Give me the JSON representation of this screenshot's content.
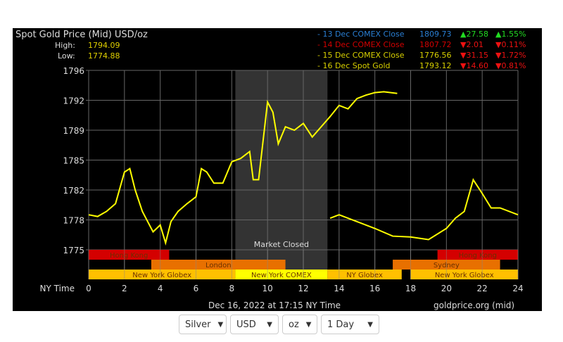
{
  "chart_data": {
    "type": "line",
    "title": "Spot Gold Price (Mid) USD/oz",
    "high_label": "High:",
    "high": "1794.09",
    "low_label": "Low:",
    "low": "1774.88",
    "xlabel": "NY Time",
    "xlim": [
      0,
      24
    ],
    "x_ticks": [
      "0",
      "2",
      "4",
      "6",
      "8",
      "10",
      "12",
      "14",
      "16",
      "18",
      "20",
      "22",
      "24"
    ],
    "ylim": [
      1775,
      1796
    ],
    "y_ticks": [
      "1796",
      "1792",
      "1789",
      "1785",
      "1782",
      "1778",
      "1775"
    ],
    "grid": true,
    "market_closed": {
      "label": "Market Closed",
      "from": 8.2,
      "to": 13.35
    },
    "sessions": [
      {
        "label": "Hong Kong",
        "from": 0,
        "to": 4.5,
        "row": 0,
        "color": "#d40000"
      },
      {
        "label": "Hong Kong",
        "from": 19.5,
        "to": 24,
        "row": 0,
        "color": "#d40000"
      },
      {
        "label": "London",
        "from": 3.5,
        "to": 11,
        "row": 1,
        "color": "#e87000"
      },
      {
        "label": "Sydney",
        "from": 17,
        "to": 23,
        "row": 1,
        "color": "#e87000"
      },
      {
        "label": "New York Globex",
        "from": 0,
        "to": 8.2,
        "row": 2,
        "color": "#ffc000"
      },
      {
        "label": "New York COMEX",
        "from": 8.2,
        "to": 13.35,
        "row": 2,
        "color": "#ffff00"
      },
      {
        "label": "NY Globex",
        "from": 13.35,
        "to": 17.5,
        "row": 2,
        "color": "#ffc000"
      },
      {
        "label": "New York Globex",
        "from": 18,
        "to": 24,
        "row": 2,
        "color": "#ffc000"
      }
    ],
    "series": [
      {
        "color": "#ffff00",
        "x": [
          0,
          0.5,
          1,
          1.5,
          2,
          2.3,
          2.6,
          3,
          3.3,
          3.6,
          4,
          4.3,
          4.6,
          5,
          5.5,
          6,
          6.3,
          6.6,
          7,
          7.5,
          8,
          8.5,
          9,
          9.2,
          9.5,
          10,
          10.3,
          10.6,
          11,
          11.5,
          12,
          12.5,
          13,
          13.5,
          14,
          14.5,
          15,
          15.5,
          16,
          16.5,
          17.25
        ],
        "y": [
          1779.1,
          1778.9,
          1779.5,
          1780.4,
          1784.1,
          1784.5,
          1782,
          1779.5,
          1778.3,
          1777.1,
          1777.9,
          1775.8,
          1778.3,
          1779.5,
          1780.4,
          1781.2,
          1784.5,
          1784.1,
          1782.8,
          1782.8,
          1785.3,
          1785.7,
          1786.5,
          1783.2,
          1783.2,
          1792.3,
          1791.1,
          1787.4,
          1789.4,
          1789,
          1789.8,
          1788.2,
          1789.4,
          1790.6,
          1791.9,
          1791.5,
          1792.7,
          1793.1,
          1793.4,
          1793.5,
          1793.3
        ]
      },
      {
        "color": "#ffff00",
        "x": [
          13.5,
          14,
          15,
          16,
          17,
          18,
          19,
          20,
          20.5,
          21,
          21.5,
          22,
          22.5,
          23,
          24
        ],
        "y": [
          1778.7,
          1779.1,
          1778.3,
          1777.5,
          1776.6,
          1776.5,
          1776.2,
          1777.5,
          1778.7,
          1779.5,
          1783.2,
          1781.6,
          1779.9,
          1779.9,
          1779.1
        ]
      }
    ],
    "legend": [
      {
        "label": "- 13 Dec COMEX Close",
        "price": "1809.73",
        "change": "27.58",
        "pct": "1.55%",
        "dir": "up",
        "color": "#2a7fd4"
      },
      {
        "label": "- 14 Dec COMEX Close",
        "price": "1807.72",
        "change": "2.01",
        "pct": "0.11%",
        "dir": "down",
        "color": "#d40000"
      },
      {
        "label": "- 15 Dec COMEX Close",
        "price": "1776.56",
        "change": "31.15",
        "pct": "1.72%",
        "dir": "down",
        "color": "#d8d000"
      },
      {
        "label": "- 16 Dec Spot Gold",
        "price": "1793.12",
        "change": "14.60",
        "pct": "0.81%",
        "dir": "down",
        "color": "#d8d000"
      }
    ],
    "footer_time": "Dec 16, 2022 at 17:15 NY Time",
    "source": "goldprice.org (mid)"
  },
  "controls": [
    {
      "value": "Silver"
    },
    {
      "value": "USD"
    },
    {
      "value": "oz"
    },
    {
      "value": "1 Day"
    }
  ]
}
